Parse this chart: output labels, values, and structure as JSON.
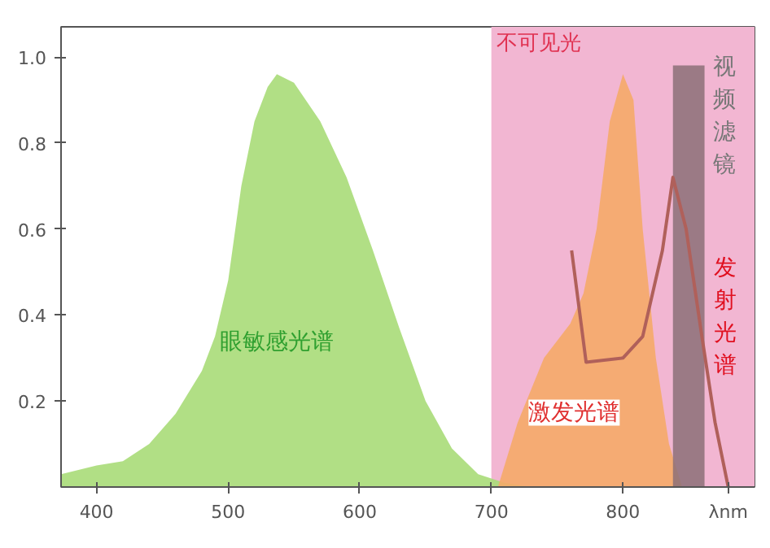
{
  "chart_data": {
    "type": "area",
    "xlim": [
      373,
      900
    ],
    "ylim": [
      0,
      1.07
    ],
    "xticks": [
      400,
      500,
      600,
      700,
      800,
      {
        "value": 880,
        "label": "λnm"
      }
    ],
    "yticks": [
      0.2,
      0.4,
      0.6,
      0.8,
      {
        "value": 1.0,
        "label": "1.0"
      }
    ],
    "grid": false,
    "bands": [
      {
        "axis": "x",
        "from": 700,
        "to": 900,
        "label": "不可见光",
        "color": "#f2b6d2"
      }
    ],
    "series": [
      {
        "name": "眼敏感光谱",
        "color": "#a8dc78",
        "x": [
          373,
          400,
          420,
          440,
          460,
          480,
          490,
          500,
          510,
          520,
          530,
          537,
          550,
          570,
          590,
          610,
          630,
          650,
          670,
          690,
          710,
          730
        ],
        "values": [
          0.03,
          0.05,
          0.06,
          0.1,
          0.17,
          0.27,
          0.35,
          0.48,
          0.7,
          0.85,
          0.93,
          0.96,
          0.94,
          0.85,
          0.72,
          0.55,
          0.37,
          0.2,
          0.09,
          0.03,
          0.01,
          0
        ]
      },
      {
        "name": "激发光谱",
        "color": "#f5aa68",
        "x": [
          705,
          720,
          740,
          760,
          770,
          780,
          790,
          800,
          808,
          815,
          825,
          835,
          845
        ],
        "values": [
          0,
          0.15,
          0.3,
          0.38,
          0.45,
          0.6,
          0.85,
          0.96,
          0.9,
          0.6,
          0.3,
          0.1,
          0
        ]
      },
      {
        "type": "bar",
        "name": "视频滤镜",
        "color": "#8c7078",
        "x": [
          850
        ],
        "values": [
          0.98
        ]
      },
      {
        "type": "line",
        "name": "发射光谱",
        "color": "#b0605a",
        "x": [
          761,
          772,
          800,
          815,
          830,
          838,
          848,
          860,
          870,
          880
        ],
        "values": [
          0.55,
          0.29,
          0.3,
          0.35,
          0.55,
          0.72,
          0.6,
          0.35,
          0.15,
          0
        ]
      }
    ]
  }
}
